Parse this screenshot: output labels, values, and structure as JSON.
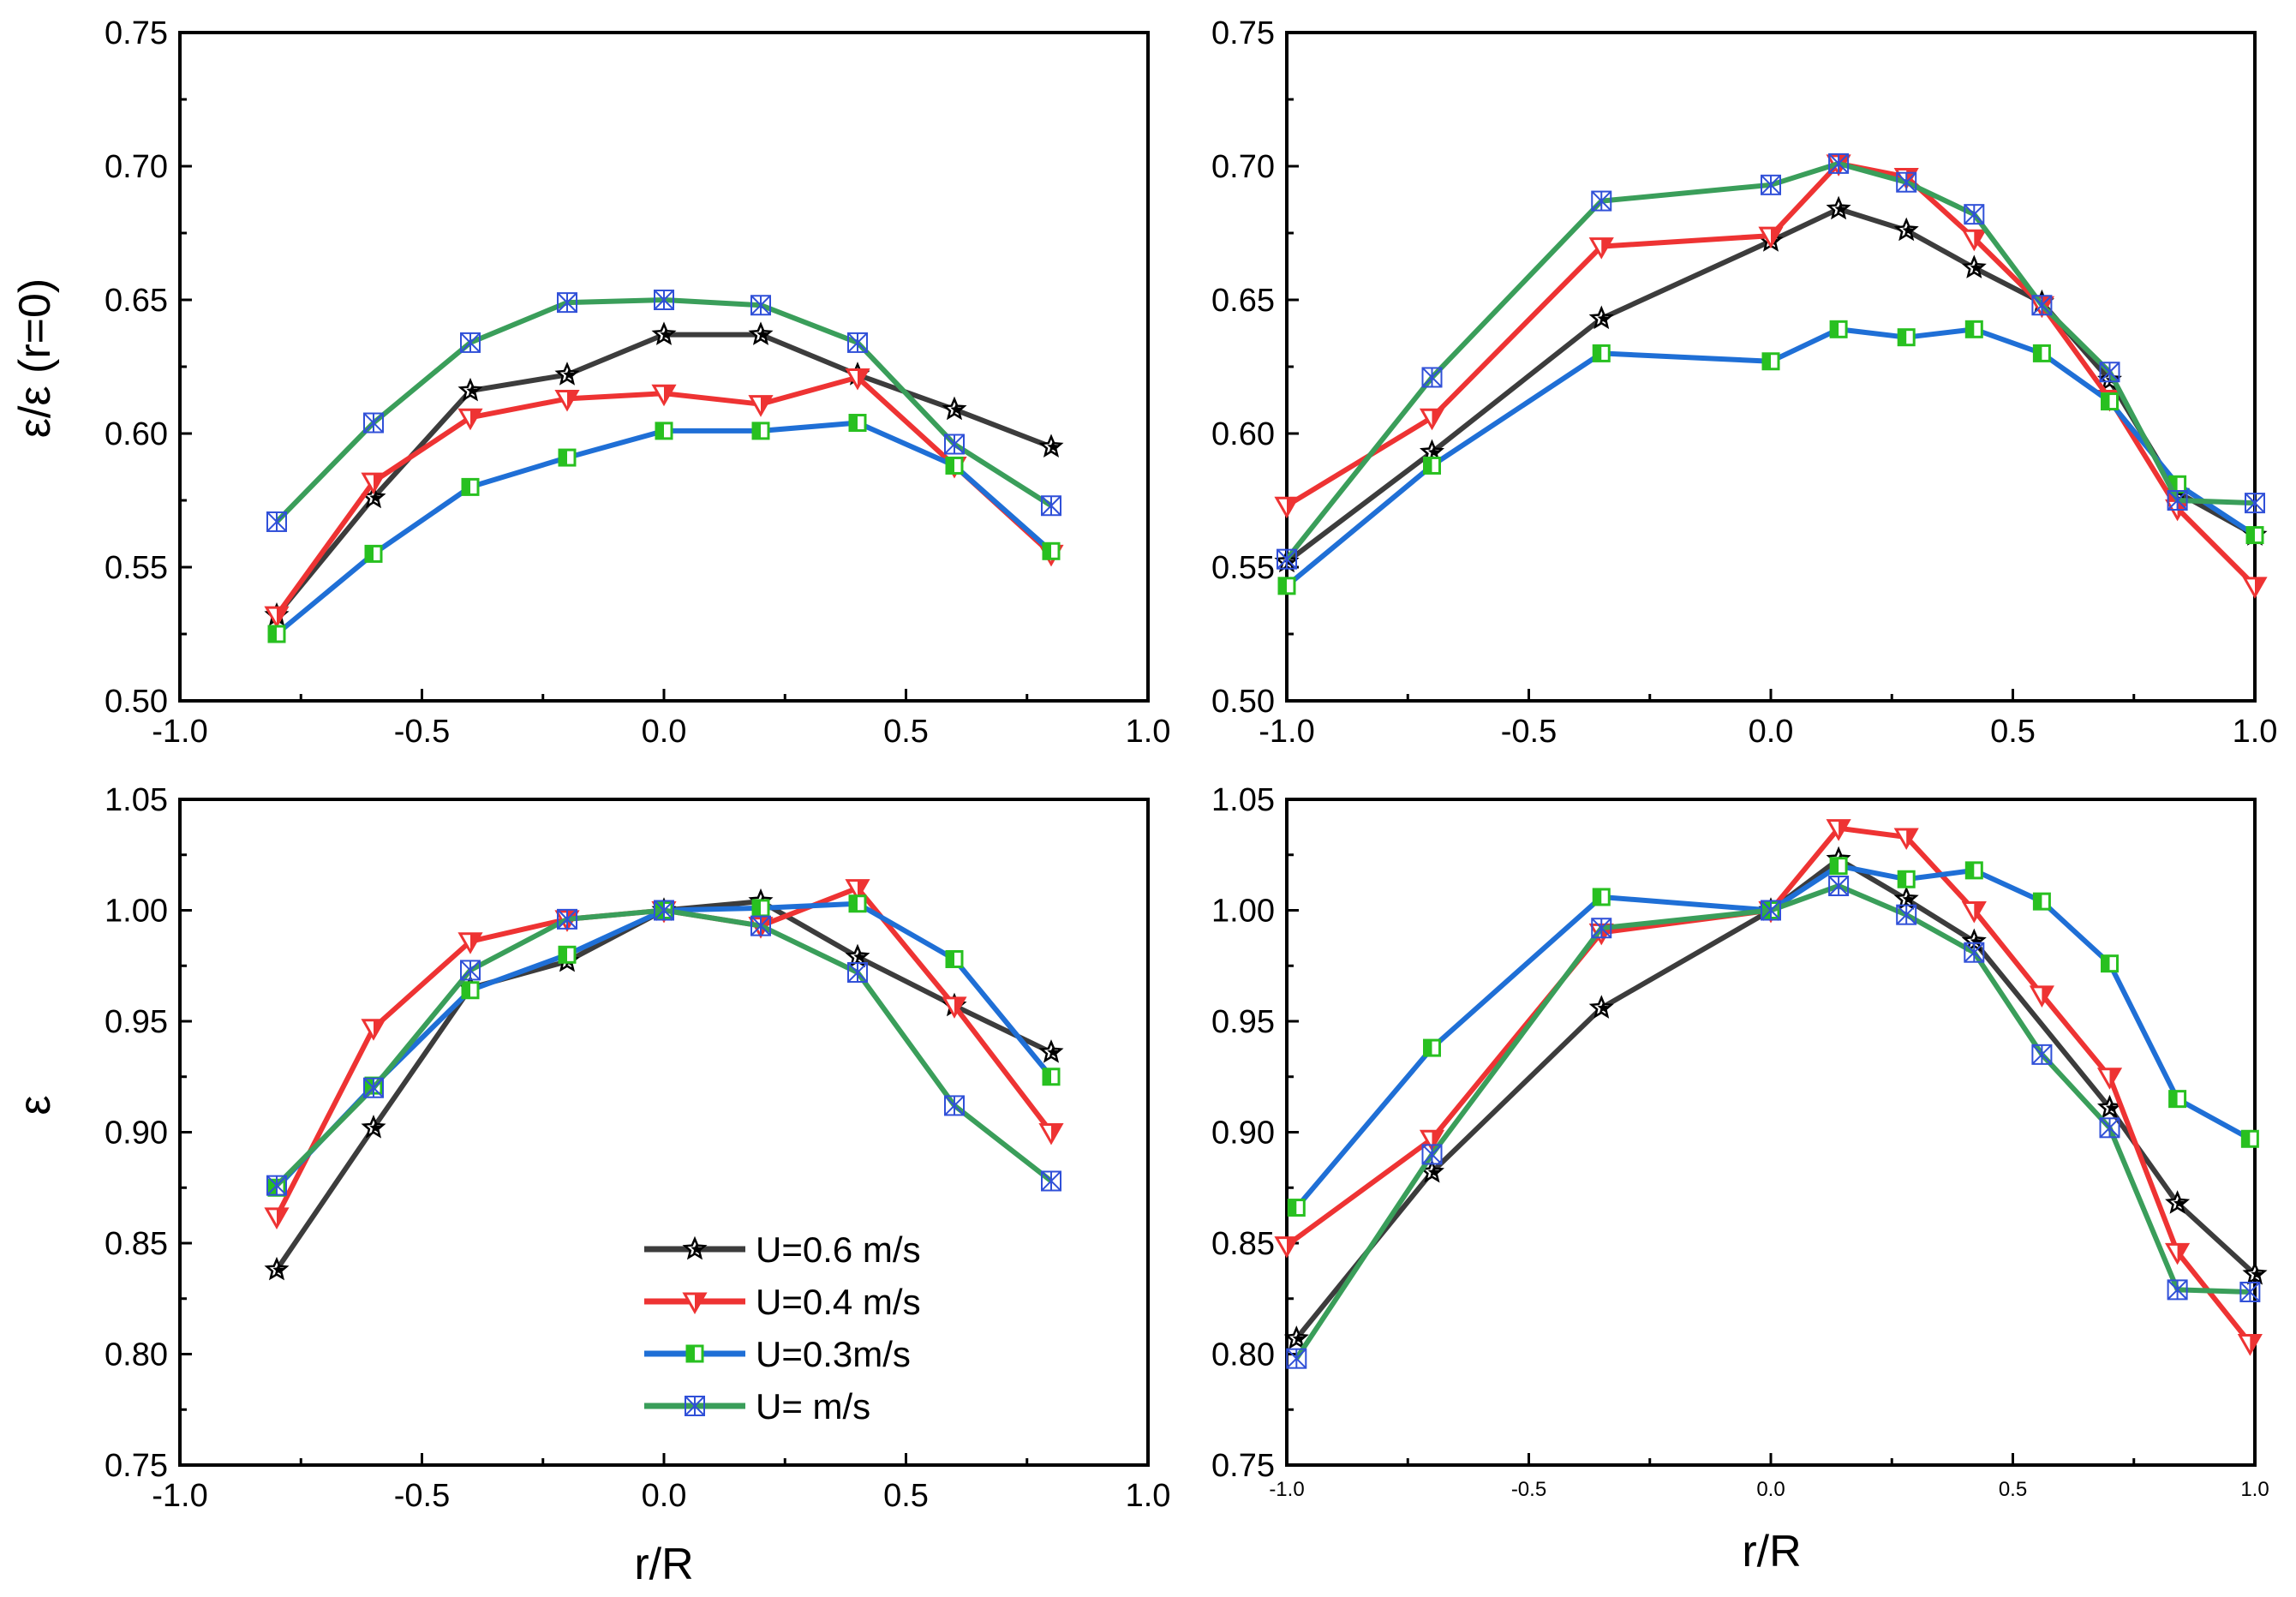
{
  "figure": {
    "ylabel_top": "ε/ε (r=0)",
    "ylabel_bottom": "ε",
    "xlabel": "r/R"
  },
  "legend": {
    "entries": [
      {
        "label": "U=0.6 m/s",
        "color": "#3c3c3c",
        "marker": "star"
      },
      {
        "label": "U=0.4 m/s",
        "color": "#ee3333",
        "marker": "triangle-down"
      },
      {
        "label": "U=0.3m/s",
        "color": "#1f6fd6",
        "marker": "square"
      },
      {
        "label": "U= m/s",
        "color": "#3a9e5a",
        "marker": "x-box"
      }
    ]
  },
  "chart_data": [
    {
      "type": "line",
      "panel": "top-left",
      "xlim": [
        -1.0,
        1.0
      ],
      "ylim": [
        0.5,
        0.75
      ],
      "xticks": [
        "-1.0",
        "-0.5",
        "0.0",
        "0.5",
        "1.0"
      ],
      "yticks": [
        "0.50",
        "0.55",
        "0.60",
        "0.65",
        "0.70",
        "0.75"
      ],
      "series": [
        {
          "name": "U=0.6 m/s",
          "color": "#3c3c3c",
          "marker": "star",
          "x": [
            -0.8,
            -0.6,
            -0.4,
            -0.2,
            0.0,
            0.2,
            0.4,
            0.6,
            0.8
          ],
          "y": [
            0.532,
            0.576,
            0.616,
            0.622,
            0.637,
            0.637,
            0.622,
            0.609,
            0.595
          ]
        },
        {
          "name": "U=0.4 m/s",
          "color": "#ee3333",
          "marker": "triangle-down",
          "x": [
            -0.8,
            -0.6,
            -0.4,
            -0.2,
            0.0,
            0.2,
            0.4,
            0.6,
            0.8
          ],
          "y": [
            0.532,
            0.582,
            0.606,
            0.613,
            0.615,
            0.611,
            0.621,
            0.588,
            0.555
          ]
        },
        {
          "name": "U=0.3m/s",
          "color": "#1f6fd6",
          "marker": "square",
          "x": [
            -0.8,
            -0.6,
            -0.4,
            -0.2,
            0.0,
            0.2,
            0.4,
            0.6,
            0.8
          ],
          "y": [
            0.525,
            0.555,
            0.58,
            0.591,
            0.601,
            0.601,
            0.604,
            0.588,
            0.556
          ]
        },
        {
          "name": "U= m/s",
          "color": "#3a9e5a",
          "marker": "x-box",
          "x": [
            -0.8,
            -0.6,
            -0.4,
            -0.2,
            0.0,
            0.2,
            0.4,
            0.6,
            0.8
          ],
          "y": [
            0.567,
            0.604,
            0.634,
            0.649,
            0.65,
            0.648,
            0.634,
            0.596,
            0.573
          ]
        }
      ]
    },
    {
      "type": "line",
      "panel": "top-right",
      "xlim": [
        -1.0,
        1.0
      ],
      "ylim": [
        0.5,
        0.75
      ],
      "xticks": [
        "-1.0",
        "-0.5",
        "0.0",
        "0.5",
        "1.0"
      ],
      "yticks": [
        "0.50",
        "0.55",
        "0.60",
        "0.65",
        "0.70",
        "0.75"
      ],
      "series": [
        {
          "name": "U=0.6 m/s",
          "color": "#3c3c3c",
          "marker": "star",
          "x": [
            -1.0,
            -0.7,
            -0.35,
            0.0,
            0.14,
            0.28,
            0.42,
            0.56,
            0.7,
            0.84,
            1.0
          ],
          "y": [
            0.552,
            0.593,
            0.643,
            0.672,
            0.684,
            0.676,
            0.662,
            0.649,
            0.62,
            0.578,
            0.562
          ]
        },
        {
          "name": "U=0.4 m/s",
          "color": "#ee3333",
          "marker": "triangle-down",
          "x": [
            -1.0,
            -0.7,
            -0.35,
            0.0,
            0.14,
            0.28,
            0.42,
            0.56,
            0.7,
            0.84,
            1.0
          ],
          "y": [
            0.573,
            0.606,
            0.67,
            0.674,
            0.701,
            0.696,
            0.673,
            0.648,
            0.613,
            0.572,
            0.543
          ]
        },
        {
          "name": "U=0.3m/s",
          "color": "#1f6fd6",
          "marker": "square",
          "x": [
            -1.0,
            -0.7,
            -0.35,
            0.0,
            0.14,
            0.28,
            0.42,
            0.56,
            0.7,
            0.84,
            1.0
          ],
          "y": [
            0.543,
            0.588,
            0.63,
            0.627,
            0.639,
            0.636,
            0.639,
            0.63,
            0.612,
            0.581,
            0.562
          ]
        },
        {
          "name": "U= m/s",
          "color": "#3a9e5a",
          "marker": "x-box",
          "x": [
            -1.0,
            -0.7,
            -0.35,
            0.0,
            0.14,
            0.28,
            0.42,
            0.56,
            0.7,
            0.84,
            1.0
          ],
          "y": [
            0.553,
            0.621,
            0.687,
            0.693,
            0.701,
            0.694,
            0.682,
            0.648,
            0.623,
            0.575,
            0.574
          ]
        }
      ]
    },
    {
      "type": "line",
      "panel": "bottom-left",
      "xlim": [
        -1.0,
        1.0
      ],
      "ylim": [
        0.75,
        1.05
      ],
      "xticks": [
        "-1.0",
        "-0.5",
        "0.0",
        "0.5",
        "1.0"
      ],
      "yticks": [
        "0.75",
        "0.80",
        "0.85",
        "0.90",
        "0.95",
        "1.00",
        "1.05"
      ],
      "series": [
        {
          "name": "U=0.6 m/s",
          "color": "#3c3c3c",
          "marker": "star",
          "x": [
            -0.8,
            -0.6,
            -0.4,
            -0.2,
            0.0,
            0.2,
            0.4,
            0.6,
            0.8
          ],
          "y": [
            0.838,
            0.902,
            0.965,
            0.977,
            1.0,
            1.004,
            0.979,
            0.957,
            0.936
          ]
        },
        {
          "name": "U=0.4 m/s",
          "color": "#ee3333",
          "marker": "triangle-down",
          "x": [
            -0.8,
            -0.6,
            -0.4,
            -0.2,
            0.0,
            0.2,
            0.4,
            0.6,
            0.8
          ],
          "y": [
            0.862,
            0.947,
            0.986,
            0.996,
            1.0,
            0.993,
            1.01,
            0.957,
            0.9
          ]
        },
        {
          "name": "U=0.3m/s",
          "color": "#1f6fd6",
          "marker": "square",
          "x": [
            -0.8,
            -0.6,
            -0.4,
            -0.2,
            0.0,
            0.2,
            0.4,
            0.6,
            0.8
          ],
          "y": [
            0.875,
            0.921,
            0.964,
            0.98,
            1.0,
            1.001,
            1.003,
            0.978,
            0.925
          ]
        },
        {
          "name": "U= m/s",
          "color": "#3a9e5a",
          "marker": "x-box",
          "x": [
            -0.8,
            -0.6,
            -0.4,
            -0.2,
            0.0,
            0.2,
            0.4,
            0.6,
            0.8
          ],
          "y": [
            0.876,
            0.92,
            0.973,
            0.996,
            1.0,
            0.993,
            0.972,
            0.912,
            0.878
          ]
        }
      ]
    },
    {
      "type": "line",
      "panel": "bottom-right",
      "xlim": [
        -1.0,
        1.0
      ],
      "ylim": [
        0.75,
        1.05
      ],
      "xticks": [
        "-1.0",
        "-0.5",
        "0.0",
        "0.5",
        "1.0"
      ],
      "yticks": [
        "0.75",
        "0.80",
        "0.85",
        "0.90",
        "0.95",
        "1.00",
        "1.05"
      ],
      "series": [
        {
          "name": "U=0.6 m/s",
          "color": "#3c3c3c",
          "marker": "star",
          "x": [
            -0.98,
            -0.7,
            -0.35,
            0.0,
            0.14,
            0.28,
            0.42,
            0.7,
            0.84,
            1.0
          ],
          "y": [
            0.807,
            0.882,
            0.956,
            1.0,
            1.023,
            1.005,
            0.986,
            0.911,
            0.868,
            0.836
          ]
        },
        {
          "name": "U=0.4 m/s",
          "color": "#ee3333",
          "marker": "triangle-down",
          "x": [
            -1.0,
            -0.7,
            -0.35,
            0.0,
            0.14,
            0.28,
            0.42,
            0.56,
            0.7,
            0.84,
            0.99
          ],
          "y": [
            0.849,
            0.897,
            0.99,
            1.0,
            1.037,
            1.033,
            1.0,
            0.962,
            0.925,
            0.846,
            0.805
          ]
        },
        {
          "name": "U=0.3m/s",
          "color": "#1f6fd6",
          "marker": "square",
          "x": [
            -0.98,
            -0.7,
            -0.35,
            0.0,
            0.14,
            0.28,
            0.42,
            0.56,
            0.7,
            0.84,
            0.99
          ],
          "y": [
            0.866,
            0.938,
            1.006,
            1.0,
            1.02,
            1.014,
            1.018,
            1.004,
            0.976,
            0.915,
            0.897
          ]
        },
        {
          "name": "U= m/s",
          "color": "#3a9e5a",
          "marker": "x-box",
          "x": [
            -0.98,
            -0.7,
            -0.35,
            0.0,
            0.14,
            0.28,
            0.42,
            0.56,
            0.7,
            0.84,
            0.99
          ],
          "y": [
            0.798,
            0.89,
            0.992,
            1.0,
            1.011,
            0.998,
            0.981,
            0.935,
            0.902,
            0.829,
            0.828
          ]
        }
      ]
    }
  ]
}
